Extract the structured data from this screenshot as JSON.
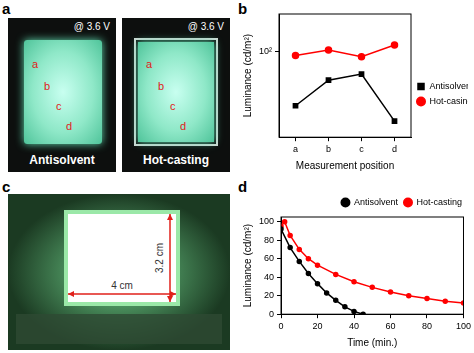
{
  "figure": {
    "panel_a": {
      "label": "a",
      "images": [
        {
          "voltage": "@ 3.6 V",
          "caption": "Antisolvent",
          "points": [
            "a",
            "b",
            "c",
            "d"
          ]
        },
        {
          "voltage": "@ 3.6 V",
          "caption": "Hot-casting",
          "points": [
            "a",
            "b",
            "c",
            "d"
          ]
        }
      ]
    },
    "panel_c": {
      "label": "c",
      "width": "4 cm",
      "height": "3.2 cm"
    }
  },
  "chart_data": [
    {
      "panel": "b",
      "type": "line",
      "x_label": "Measurement position",
      "y_label": "Luminance (cd/m²)",
      "categories": [
        "a",
        "b",
        "c",
        "d"
      ],
      "series": [
        {
          "name": "Antisolvent",
          "color": "#000000",
          "marker": "square",
          "values": [
            36,
            58,
            65,
            27
          ]
        },
        {
          "name": "Hot-casing",
          "color": "#ff0000",
          "marker": "circle",
          "values": [
            92,
            102,
            90,
            112
          ]
        }
      ],
      "ylim": [
        20,
        200
      ],
      "yticks": [
        {
          "value": 100,
          "label": "10²"
        }
      ],
      "log": "y",
      "grid": false,
      "legend": "center right"
    },
    {
      "panel": "d",
      "type": "line",
      "x_label": "Time (min.)",
      "y_label": "Luminance (cd/m²)",
      "series": [
        {
          "name": "Antisolvent",
          "color": "#000000",
          "marker": "circle",
          "x": [
            0,
            5,
            10,
            15,
            20,
            25,
            30,
            35,
            40,
            45
          ],
          "values": [
            92,
            72,
            57,
            44,
            33,
            23,
            15,
            8,
            3,
            0
          ]
        },
        {
          "name": "Hot-casting",
          "color": "#ff0000",
          "marker": "circle",
          "x": [
            0,
            2,
            5,
            10,
            15,
            20,
            30,
            40,
            50,
            60,
            70,
            80,
            90,
            100
          ],
          "values": [
            95,
            100,
            85,
            70,
            60,
            53,
            43,
            35,
            29,
            24,
            20,
            17,
            14,
            12
          ]
        }
      ],
      "xlim": [
        0,
        100
      ],
      "xticks": [
        0,
        20,
        40,
        60,
        80,
        100
      ],
      "ylim": [
        0,
        105
      ],
      "yticks": [
        0,
        20,
        40,
        60,
        80,
        100
      ],
      "grid": false,
      "legend": "upper right"
    }
  ]
}
